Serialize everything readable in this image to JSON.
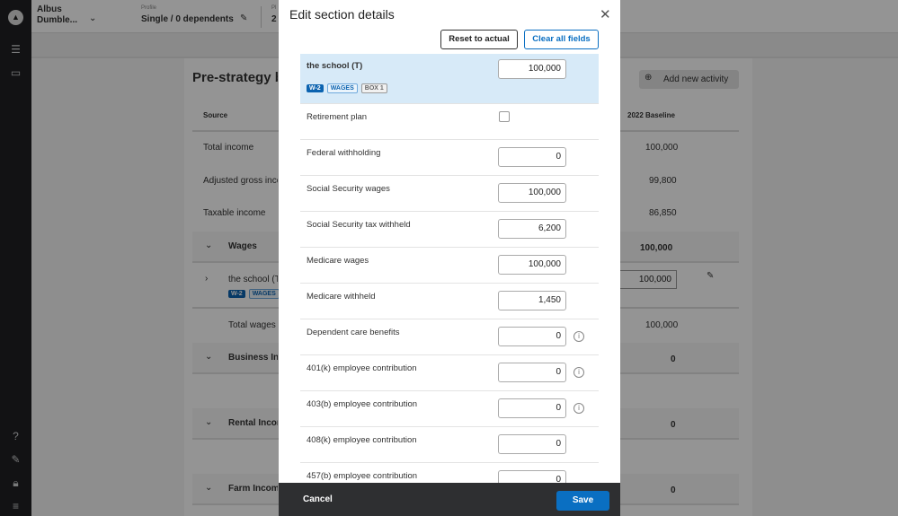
{
  "sidebar": {
    "icons": [
      "logo-icon",
      "list-icon",
      "card-icon",
      "help-icon",
      "feedback-icon",
      "lock-icon",
      "menu-collapse-icon"
    ]
  },
  "header": {
    "client_first": "Albus",
    "client_last": "Dumble...",
    "profile_label": "Profile",
    "profile_value": "Single / 0 dependents",
    "next_label": "Pl",
    "next_value": "2"
  },
  "page": {
    "title": "Pre-strategy b",
    "add_activity": "Add new activity",
    "col_source": "Source",
    "col_baseline": "2022 Baseline",
    "summary": [
      {
        "label": "Total income",
        "value": "100,000"
      },
      {
        "label": "Adjusted gross inco",
        "value": "99,800"
      },
      {
        "label": "Taxable income",
        "value": "86,850"
      }
    ],
    "wages": {
      "label": "Wages",
      "value": "100,000",
      "item": "the school (T",
      "item_value": "100,000",
      "tags": [
        "W-2",
        "WAGES"
      ],
      "total_label": "Total wages",
      "total_value": "100,000"
    },
    "sections": [
      {
        "label": "Business Inco",
        "value": "0"
      },
      {
        "label": "Rental Incon",
        "value": "0"
      },
      {
        "label": "Farm Income",
        "value": "0"
      }
    ]
  },
  "modal": {
    "title": "Edit section details",
    "reset": "Reset to actual",
    "clear": "Clear all fields",
    "source": {
      "name": "the school (T)",
      "value": "100,000",
      "tags": [
        "W-2",
        "WAGES",
        "BOX 1"
      ]
    },
    "retirement_label": "Retirement plan",
    "retirement_checked": false,
    "fields": [
      {
        "label": "Federal withholding",
        "value": "0"
      },
      {
        "label": "Social Security wages",
        "value": "100,000"
      },
      {
        "label": "Social Security tax withheld",
        "value": "6,200"
      },
      {
        "label": "Medicare wages",
        "value": "100,000"
      },
      {
        "label": "Medicare withheld",
        "value": "1,450"
      },
      {
        "label": "Dependent care benefits",
        "value": "0",
        "info": true
      },
      {
        "label": "401(k) employee contribution",
        "value": "0",
        "info": true
      },
      {
        "label": "403(b) employee contribution",
        "value": "0",
        "info": true
      },
      {
        "label": "408(k) employee contribution",
        "value": "0"
      },
      {
        "label": "457(b) employee contribution",
        "value": "0"
      }
    ],
    "cancel": "Cancel",
    "save": "Save",
    "accent": "#0a6fc2"
  }
}
